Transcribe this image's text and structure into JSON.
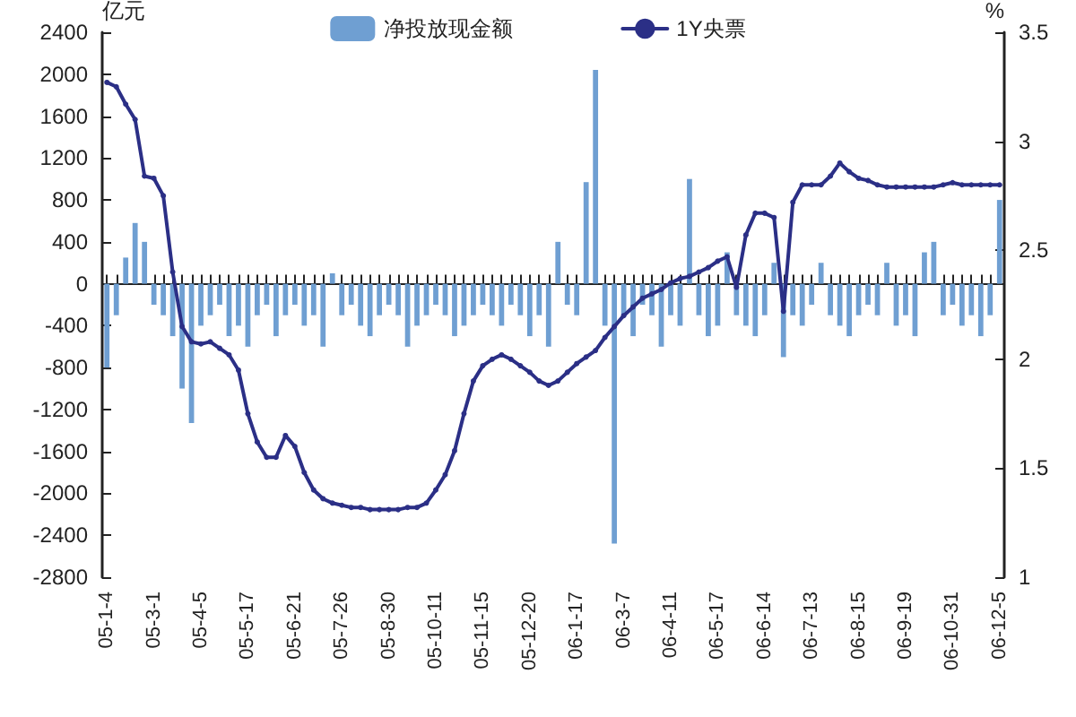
{
  "chart_data": {
    "type": "bar",
    "ylabel": "亿元",
    "y2label": "%",
    "categories": [
      "05-1-4",
      null,
      null,
      null,
      null,
      "05-3-1",
      null,
      null,
      null,
      null,
      "05-4-5",
      null,
      null,
      null,
      null,
      "05-5-17",
      null,
      null,
      null,
      null,
      "05-6-21",
      null,
      null,
      null,
      null,
      "05-7-26",
      null,
      null,
      null,
      null,
      "05-8-30",
      null,
      null,
      null,
      null,
      "05-10-11",
      null,
      null,
      null,
      null,
      "05-11-15",
      null,
      null,
      null,
      null,
      "05-12-20",
      null,
      null,
      null,
      null,
      "06-1-17",
      null,
      null,
      null,
      null,
      "06-3-7",
      null,
      null,
      null,
      null,
      "06-4-11",
      null,
      null,
      null,
      null,
      "06-5-17",
      null,
      null,
      null,
      null,
      "06-6-14",
      null,
      null,
      null,
      null,
      "06-7-13",
      null,
      null,
      null,
      null,
      "06-8-15",
      null,
      null,
      null,
      null,
      "06-9-19",
      null,
      null,
      null,
      null,
      "06-10-31",
      null,
      null,
      null,
      null,
      "06-12-5"
    ],
    "series": [
      {
        "name": "净投放现金额",
        "color": "#6f9fd2",
        "values": [
          -800,
          -300,
          250,
          580,
          400,
          -200,
          -300,
          -500,
          -1000,
          -1330,
          -400,
          -300,
          -200,
          -500,
          -400,
          -600,
          -300,
          -200,
          -500,
          -300,
          -200,
          -400,
          -300,
          -600,
          100,
          -300,
          -200,
          -400,
          -500,
          -300,
          -200,
          -300,
          -600,
          -400,
          -300,
          -200,
          -300,
          -500,
          -400,
          -300,
          -200,
          -300,
          -400,
          -200,
          -300,
          -500,
          -300,
          -600,
          400,
          -200,
          -300,
          970,
          2040,
          -400,
          -2480,
          -300,
          -500,
          -200,
          -300,
          -600,
          -300,
          -400,
          1000,
          -300,
          -500,
          -400,
          300,
          -300,
          -400,
          -500,
          -300,
          200,
          -700,
          -300,
          -400,
          -200,
          200,
          -300,
          -400,
          -500,
          -300,
          -200,
          -300,
          200,
          -400,
          -300,
          -500,
          300,
          400,
          -300,
          -200,
          -400,
          -300,
          -500,
          -300,
          800
        ]
      },
      {
        "name": "1Y央票",
        "type": "line",
        "axis": "y2",
        "color": "#2b2f86",
        "values": [
          3.27,
          3.25,
          3.17,
          3.1,
          2.84,
          2.83,
          2.75,
          2.4,
          2.15,
          2.08,
          2.07,
          2.08,
          2.05,
          2.02,
          1.95,
          1.75,
          1.62,
          1.55,
          1.55,
          1.65,
          1.6,
          1.48,
          1.4,
          1.36,
          1.34,
          1.33,
          1.32,
          1.32,
          1.31,
          1.31,
          1.31,
          1.31,
          1.32,
          1.32,
          1.34,
          1.4,
          1.47,
          1.58,
          1.75,
          1.9,
          1.97,
          2.0,
          2.02,
          2.0,
          1.97,
          1.94,
          1.9,
          1.88,
          1.9,
          1.94,
          1.98,
          2.01,
          2.04,
          2.1,
          2.15,
          2.2,
          2.24,
          2.28,
          2.3,
          2.32,
          2.35,
          2.37,
          2.38,
          2.4,
          2.42,
          2.45,
          2.47,
          2.33,
          2.57,
          2.67,
          2.67,
          2.65,
          2.22,
          2.72,
          2.8,
          2.8,
          2.8,
          2.84,
          2.9,
          2.86,
          2.83,
          2.82,
          2.8,
          2.79,
          2.79,
          2.79,
          2.79,
          2.79,
          2.79,
          2.8,
          2.81,
          2.8,
          2.8,
          2.8,
          2.8,
          2.8
        ]
      }
    ],
    "ylim": [
      -2800,
      2400
    ],
    "yticks": [
      -2800,
      -2400,
      -2000,
      -1600,
      -1200,
      -800,
      -400,
      0,
      400,
      800,
      1200,
      1600,
      2000,
      2400
    ],
    "y2lim": [
      1,
      3.5
    ],
    "y2ticks": [
      1,
      1.5,
      2,
      2.5,
      3,
      3.5
    ],
    "legend": "top",
    "marker": "circle",
    "line_style": "solid"
  }
}
